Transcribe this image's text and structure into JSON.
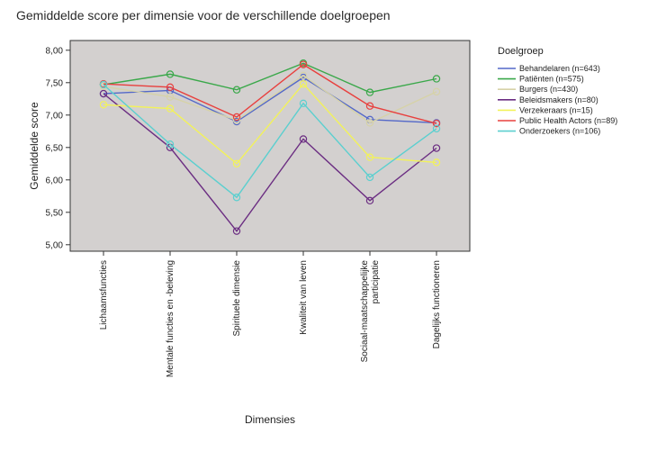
{
  "chart_data": {
    "type": "line",
    "title": "Gemiddelde score per dimensie voor de verschillende doelgroepen",
    "xlabel": "Dimensies",
    "ylabel": "Gemiddelde score",
    "ylim": [
      4.9,
      8.15
    ],
    "yticks": [
      "5,00",
      "5,50",
      "6,00",
      "6,50",
      "7,00",
      "7,50",
      "8,00"
    ],
    "ytick_values": [
      5.0,
      5.5,
      6.0,
      6.5,
      7.0,
      7.5,
      8.0
    ],
    "categories": [
      [
        "Lichaamsfuncties"
      ],
      [
        "Mentale functies en -beleving"
      ],
      [
        "Spirituele dimensie"
      ],
      [
        "Kwaliteit van leven"
      ],
      [
        "Sociaal-maatschappelijke",
        "participatie"
      ],
      [
        "Dagelijks functioneren"
      ]
    ],
    "plot_background": "#d3d0cf",
    "grid": false,
    "legend_position": "right",
    "legend_title": "Doelgroep",
    "series": [
      {
        "name": "Behandelaren (n=643)",
        "color": "#5468c8",
        "values": [
          7.33,
          7.38,
          6.9,
          7.58,
          6.93,
          6.88
        ]
      },
      {
        "name": "Patiënten (n=575)",
        "color": "#3aa84a",
        "values": [
          7.47,
          7.63,
          7.39,
          7.8,
          7.35,
          7.56
        ]
      },
      {
        "name": "Burgers (n=430)",
        "color": "#d6d2a8",
        "values": [
          7.44,
          7.28,
          6.92,
          7.61,
          6.88,
          7.36
        ]
      },
      {
        "name": "Beleidsmakers (n=80)",
        "color": "#6b2d82",
        "values": [
          7.33,
          6.5,
          5.21,
          6.63,
          5.68,
          6.49
        ]
      },
      {
        "name": "Verzekeraars (n=15)",
        "color": "#f2f25a",
        "values": [
          7.16,
          7.1,
          6.25,
          7.48,
          6.35,
          6.27
        ]
      },
      {
        "name": "Public Health Actors (n=89)",
        "color": "#e8403e",
        "values": [
          7.48,
          7.43,
          6.97,
          7.78,
          7.14,
          6.87
        ]
      },
      {
        "name": "Onderzoekers (n=106)",
        "color": "#5ccfcf",
        "values": [
          7.47,
          6.55,
          5.73,
          7.18,
          6.04,
          6.79
        ]
      }
    ]
  }
}
